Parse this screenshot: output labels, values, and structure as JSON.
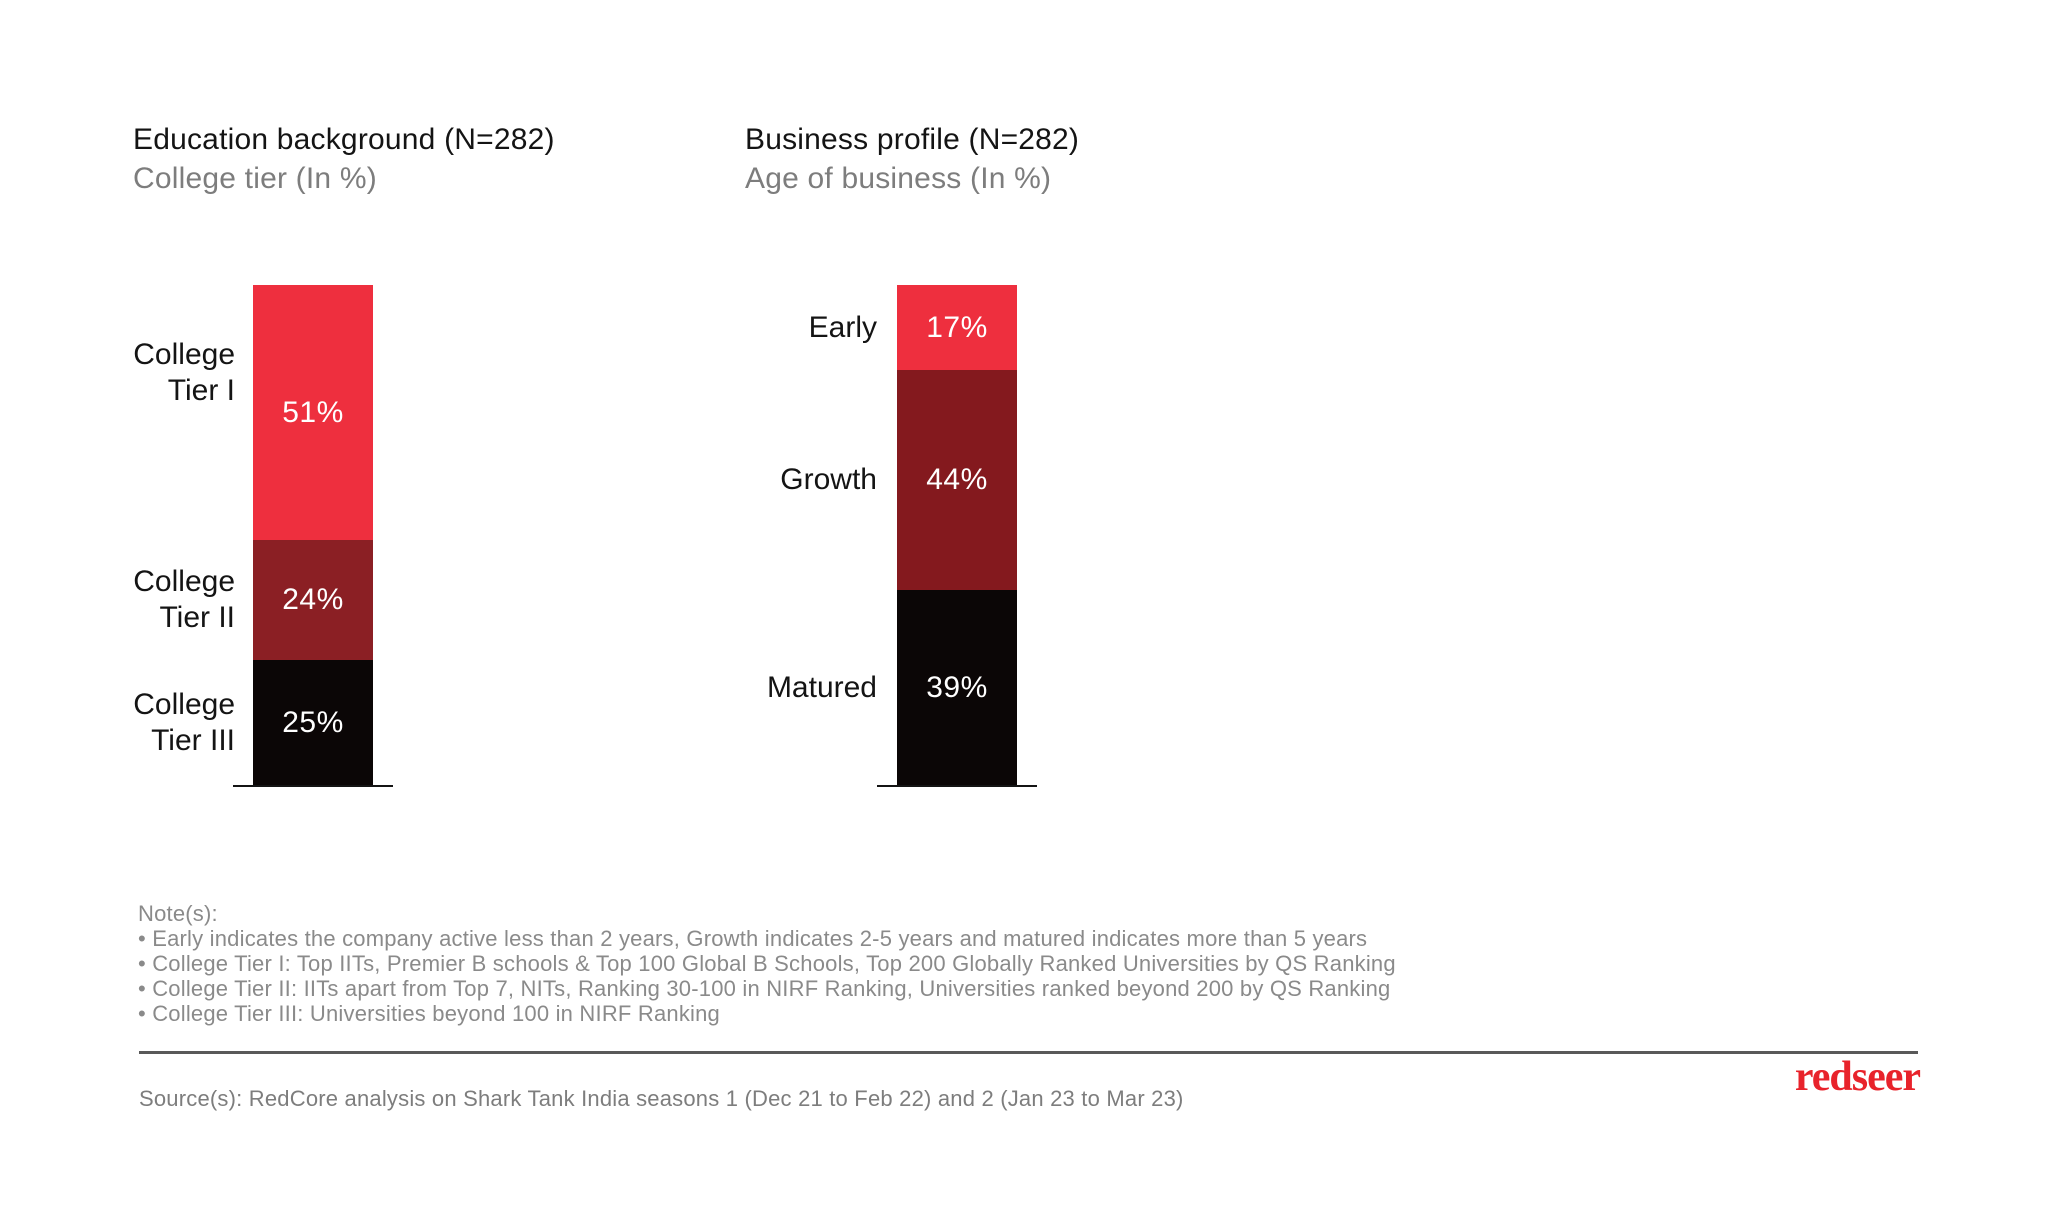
{
  "chart_data": [
    {
      "type": "bar",
      "stacked": true,
      "orientation": "vertical",
      "title": "Education background (N=282)",
      "subtitle": "College tier (In %)",
      "n": 282,
      "unit": "%",
      "categories": [
        "College Tier I",
        "College Tier II",
        "College Tier III"
      ],
      "values": [
        51,
        24,
        25
      ],
      "value_labels": [
        "51%",
        "24%",
        "25%"
      ],
      "display_labels": [
        "College\nTier I",
        "College\nTier II",
        "College\nTier III"
      ],
      "colors": [
        "#ee2f3e",
        "#8b1f24",
        "#0b0606"
      ],
      "total": 100,
      "ylim": [
        0,
        100
      ],
      "legend": "none",
      "grid": false
    },
    {
      "type": "bar",
      "stacked": true,
      "orientation": "vertical",
      "title": "Business profile (N=282)",
      "subtitle": "Age of business (In %)",
      "n": 282,
      "unit": "%",
      "categories": [
        "Early",
        "Growth",
        "Matured"
      ],
      "values": [
        17,
        44,
        39
      ],
      "value_labels": [
        "17%",
        "44%",
        "39%"
      ],
      "display_labels": [
        "Early",
        "Growth",
        "Matured"
      ],
      "colors": [
        "#ee2f3e",
        "#84191e",
        "#0b0606"
      ],
      "total": 100,
      "ylim": [
        0,
        100
      ],
      "legend": "none",
      "grid": false
    }
  ],
  "notes": {
    "heading": "Note(s):",
    "items": [
      "• Early indicates the company active less than 2 years, Growth indicates 2-5 years and matured indicates more than 5 years",
      "• College Tier I: Top IITs, Premier B schools & Top 100 Global B Schools, Top 200 Globally Ranked Universities by QS Ranking",
      "• College Tier II: IITs apart from Top 7, NITs, Ranking 30-100 in NIRF Ranking, Universities ranked beyond 200 by QS Ranking",
      "• College Tier III: Universities beyond 100 in NIRF Ranking"
    ]
  },
  "source": {
    "text": "Source(s): RedCore analysis on Shark Tank India seasons 1 (Dec 21 to Feb 22) and 2 (Jan 23 to Mar 23)"
  },
  "logo": {
    "text": "redseer",
    "color": "#e8232b"
  },
  "colors": {
    "bright_red": "#ee2f3e",
    "maroon_left": "#8b1f24",
    "maroon_right": "#84191e",
    "near_black": "#0b0606",
    "text_dark": "#141414",
    "text_gray": "#7d7d7d",
    "notes_gray": "#8a8a8a",
    "divider_gray": "#595959",
    "logo_red": "#e8232b"
  }
}
